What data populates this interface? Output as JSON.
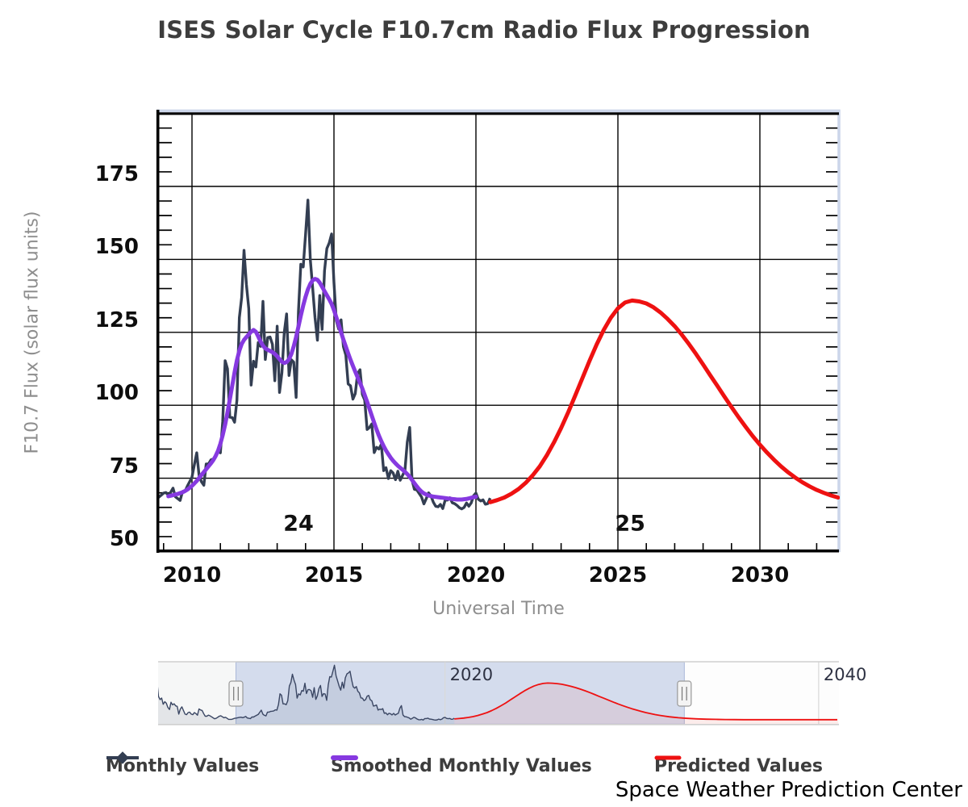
{
  "title": "ISES Solar Cycle F10.7cm Radio Flux Progression",
  "credit": "Space Weather Prediction Center",
  "chart_data": {
    "type": "line",
    "title": "ISES Solar Cycle F10.7cm Radio Flux Progression",
    "xlabel": "Universal Time",
    "ylabel": "F10.7 Flux (solar flux units)",
    "x_range": [
      2008.81,
      2032.81
    ],
    "y_range": [
      50,
      200
    ],
    "x_ticks": [
      2010,
      2015,
      2020,
      2025,
      2030
    ],
    "y_ticks": [
      50,
      75,
      100,
      125,
      150,
      175
    ],
    "minor_y_step": 5,
    "minor_x_step_years": 1,
    "grid": true,
    "legend_position": "bottom",
    "cycle_labels": [
      {
        "label": "24",
        "x": 2013.75,
        "y": 59.5
      },
      {
        "label": "25",
        "x": 2025.43,
        "y": 59.5
      }
    ],
    "series": [
      {
        "name": "Monthly Values",
        "color": "#333e52",
        "marker": "diamond",
        "start": 2008.75,
        "step": 0.0833333,
        "values": [
          68.2,
          68.5,
          69.2,
          69.9,
          70.1,
          69.2,
          70.2,
          71.6,
          68.6,
          68.0,
          67.4,
          70.5,
          70.4,
          72.2,
          73.8,
          75.4,
          79.6,
          83.7,
          75.9,
          73.8,
          72.6,
          79.9,
          79.9,
          81.3,
          81.6,
          82.3,
          84.3,
          83.7,
          94.5,
          115.3,
          112.5,
          95.9,
          95.8,
          94.2,
          101.7,
          130.0,
          137.0,
          153.1,
          141.3,
          133.1,
          106.9,
          115.1,
          113.1,
          121.5,
          120.2,
          135.6,
          115.7,
          123.2,
          123.4,
          120.9,
          108.4,
          127.1,
          104.4,
          111.2,
          125.0,
          131.3,
          110.2,
          115.6,
          114.8,
          102.7,
          132.3,
          148.3,
          147.4,
          158.6,
          170.3,
          149.9,
          140.2,
          130.1,
          122.3,
          137.6,
          126.0,
          146.1,
          153.7,
          155.6,
          158.7,
          142.1,
          129.0,
          126.1,
          129.3,
          120.1,
          117.2,
          107.3,
          106.7,
          102.1,
          104.0,
          110.8,
          112.2,
          103.7,
          101.8,
          91.7,
          92.4,
          93.6,
          83.8,
          85.6,
          85.0,
          86.6,
          77.6,
          78.6,
          74.9,
          77.6,
          76.8,
          74.5,
          77.4,
          74.3,
          76.0,
          77.7,
          87.4,
          92.4,
          74.3,
          71.2,
          71.0,
          69.8,
          68.6,
          66.2,
          68.0,
          70.0,
          68.9,
          66.8,
          65.4,
          65.2,
          66.0,
          64.6,
          67.5,
          67.5,
          68.3,
          66.6,
          66.3,
          65.7,
          64.9,
          64.5,
          65.0,
          66.5,
          65.4,
          66.5,
          69.0,
          69.9,
          67.8,
          67.2,
          67.6,
          66.1,
          66.3,
          68.2
        ]
      },
      {
        "name": "Smoothed Monthly Values",
        "color": "#8639e0",
        "start": 2009.1667,
        "step": 0.0833333,
        "values": [
          68.8,
          69.0,
          69.2,
          69.4,
          69.6,
          69.9,
          70.2,
          70.6,
          71.1,
          71.7,
          72.4,
          73.2,
          74.1,
          75.1,
          76.1,
          77.1,
          78.1,
          79.1,
          80.1,
          81.2,
          82.6,
          84.4,
          86.8,
          89.8,
          93.4,
          97.5,
          102.0,
          106.7,
          111.3,
          115.4,
          118.7,
          121.0,
          122.4,
          123.4,
          124.3,
          125.2,
          125.8,
          125.2,
          123.6,
          121.8,
          120.4,
          119.5,
          119.0,
          118.6,
          118.2,
          117.6,
          116.8,
          115.8,
          114.9,
          114.5,
          114.8,
          115.8,
          117.6,
          120.2,
          123.4,
          127.0,
          130.7,
          134.2,
          137.2,
          139.7,
          141.6,
          142.8,
          143.3,
          143.0,
          142.0,
          140.6,
          139.1,
          137.7,
          136.3,
          134.7,
          132.6,
          130.2,
          127.6,
          125.0,
          122.5,
          120.1,
          117.8,
          115.6,
          113.5,
          111.5,
          109.6,
          107.7,
          105.7,
          103.5,
          101.2,
          98.8,
          96.4,
          94.0,
          91.7,
          89.6,
          87.7,
          86.0,
          84.5,
          83.2,
          82.0,
          81.0,
          80.1,
          79.3,
          78.6,
          77.9,
          77.2,
          76.4,
          75.5,
          74.4,
          73.3,
          72.2,
          71.2,
          70.4,
          69.8,
          69.4,
          69.1,
          68.9,
          68.7,
          68.6,
          68.5,
          68.4,
          68.3,
          68.2,
          68.1,
          68.0,
          67.9,
          67.8,
          67.7,
          67.7,
          67.7,
          67.8,
          67.9,
          68.1,
          68.3,
          68.5,
          68.7
        ]
      },
      {
        "name": "Predicted Values",
        "color": "#ee1111",
        "start": 2020.5,
        "step": 0.25,
        "values": [
          66.8,
          67.5,
          68.4,
          69.7,
          71.3,
          73.4,
          76.0,
          79.1,
          82.9,
          87.3,
          92.2,
          97.6,
          103.4,
          109.3,
          115.2,
          120.8,
          125.8,
          130.0,
          133.2,
          135.2,
          135.9,
          135.6,
          134.9,
          133.6,
          131.8,
          129.6,
          127.1,
          124.2,
          121.0,
          117.6,
          114.0,
          110.3,
          106.7,
          103.0,
          99.4,
          95.9,
          92.6,
          89.4,
          86.5,
          83.8,
          81.3,
          79.0,
          77.0,
          75.2,
          73.6,
          72.2,
          71.0,
          70.0,
          69.1,
          68.4
        ]
      }
    ],
    "navigator": {
      "x_range": [
        2004.6,
        2041.1
      ],
      "selected_range": [
        2008.81,
        2032.81
      ],
      "axis_labels": [
        {
          "label": "2020",
          "x": 2020
        },
        {
          "label": "2040",
          "x": 2040
        }
      ],
      "monthly_history": {
        "start": 2004.5833,
        "step": 0.0833333,
        "values": [
          140,
          110,
          104,
          107,
          95,
          100,
          97,
          89,
          85,
          99,
          94,
          96,
          92,
          91,
          76,
          86,
          90,
          83,
          76,
          75,
          79,
          80,
          76,
          75,
          79,
          77,
          74,
          86,
          84,
          83,
          77,
          72,
          72,
          74,
          73,
          71,
          69,
          67,
          68,
          70,
          72,
          73,
          71,
          69,
          70,
          68,
          66,
          66,
          66,
          67
        ]
      },
      "predicted_extension": {
        "start": 2033.0,
        "step": 0.5,
        "values": [
          67.8,
          66.9,
          66.3,
          65.9,
          65.6,
          65.5,
          65.4,
          65.4,
          65.3,
          65.3,
          65.3,
          65.3,
          65.3,
          65.3,
          65.3,
          65.3,
          65.3
        ]
      }
    },
    "colors": {
      "grid": "#000000",
      "plot_border": "#ccd6ea",
      "navigator_mask": "rgba(108,136,192,0.29)",
      "navigator_mask_border": "#aab8d8",
      "navigator_outline": "#cfcfcf",
      "handle_fill": "#f4f4f4",
      "handle_border": "#999999"
    }
  }
}
